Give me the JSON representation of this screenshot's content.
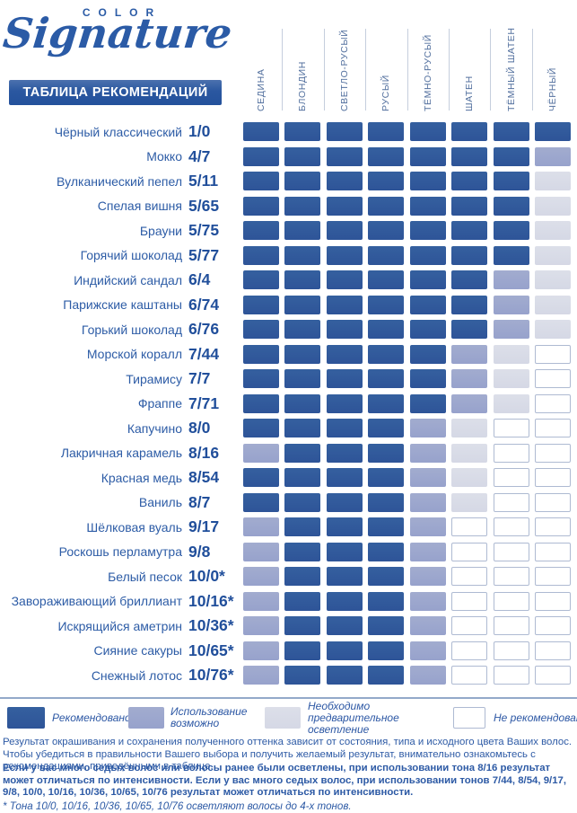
{
  "logo": {
    "color_word": "COLOR",
    "script_word": "Signature"
  },
  "header": {
    "title": "ТАБЛИЦА РЕКОМЕНДАЦИЙ"
  },
  "table": {
    "columns": [
      "СЕДИНА",
      "БЛОНДИН",
      "СВЕТЛО-РУСЫЙ",
      "РУСЫЙ",
      "ТЁМНО-РУСЫЙ",
      "ШАТЕН",
      "ТЁМНЫЙ ШАТЕН",
      "ЧЁРНЫЙ"
    ],
    "rows": [
      {
        "name": "Чёрный классический",
        "code": "1/0",
        "cells": [
          "R",
          "R",
          "R",
          "R",
          "R",
          "R",
          "R",
          "R"
        ]
      },
      {
        "name": "Мокко",
        "code": "4/7",
        "cells": [
          "R",
          "R",
          "R",
          "R",
          "R",
          "R",
          "R",
          "P"
        ]
      },
      {
        "name": "Вулканический пепел",
        "code": "5/11",
        "cells": [
          "R",
          "R",
          "R",
          "R",
          "R",
          "R",
          "R",
          "L"
        ]
      },
      {
        "name": "Спелая вишня",
        "code": "5/65",
        "cells": [
          "R",
          "R",
          "R",
          "R",
          "R",
          "R",
          "R",
          "L"
        ]
      },
      {
        "name": "Брауни",
        "code": "5/75",
        "cells": [
          "R",
          "R",
          "R",
          "R",
          "R",
          "R",
          "R",
          "L"
        ]
      },
      {
        "name": "Горячий шоколад",
        "code": "5/77",
        "cells": [
          "R",
          "R",
          "R",
          "R",
          "R",
          "R",
          "R",
          "L"
        ]
      },
      {
        "name": "Индийский сандал",
        "code": "6/4",
        "cells": [
          "R",
          "R",
          "R",
          "R",
          "R",
          "R",
          "P",
          "L"
        ]
      },
      {
        "name": "Парижские каштаны",
        "code": "6/74",
        "cells": [
          "R",
          "R",
          "R",
          "R",
          "R",
          "R",
          "P",
          "L"
        ]
      },
      {
        "name": "Горький шоколад",
        "code": "6/76",
        "cells": [
          "R",
          "R",
          "R",
          "R",
          "R",
          "R",
          "P",
          "L"
        ]
      },
      {
        "name": "Морской коралл",
        "code": "7/44",
        "cells": [
          "R",
          "R",
          "R",
          "R",
          "R",
          "P",
          "L",
          "N"
        ]
      },
      {
        "name": "Тирамису",
        "code": "7/7",
        "cells": [
          "R",
          "R",
          "R",
          "R",
          "R",
          "P",
          "L",
          "N"
        ]
      },
      {
        "name": "Фраппе",
        "code": "7/71",
        "cells": [
          "R",
          "R",
          "R",
          "R",
          "R",
          "P",
          "L",
          "N"
        ]
      },
      {
        "name": "Капучино",
        "code": "8/0",
        "cells": [
          "R",
          "R",
          "R",
          "R",
          "P",
          "L",
          "N",
          "N"
        ]
      },
      {
        "name": "Лакричная карамель",
        "code": "8/16",
        "cells": [
          "P",
          "R",
          "R",
          "R",
          "P",
          "L",
          "N",
          "N"
        ]
      },
      {
        "name": "Красная медь",
        "code": "8/54",
        "cells": [
          "R",
          "R",
          "R",
          "R",
          "P",
          "L",
          "N",
          "N"
        ]
      },
      {
        "name": "Ваниль",
        "code": "8/7",
        "cells": [
          "R",
          "R",
          "R",
          "R",
          "P",
          "L",
          "N",
          "N"
        ]
      },
      {
        "name": "Шёлковая вуаль",
        "code": "9/17",
        "cells": [
          "P",
          "R",
          "R",
          "R",
          "P",
          "N",
          "N",
          "N"
        ]
      },
      {
        "name": "Роскошь перламутра",
        "code": "9/8",
        "cells": [
          "P",
          "R",
          "R",
          "R",
          "P",
          "N",
          "N",
          "N"
        ]
      },
      {
        "name": "Белый песок",
        "code": "10/0*",
        "cells": [
          "P",
          "R",
          "R",
          "R",
          "P",
          "N",
          "N",
          "N"
        ]
      },
      {
        "name": "Завораживающий бриллиант",
        "code": "10/16*",
        "cells": [
          "P",
          "R",
          "R",
          "R",
          "P",
          "N",
          "N",
          "N"
        ]
      },
      {
        "name": "Искрящийся аметрин",
        "code": "10/36*",
        "cells": [
          "P",
          "R",
          "R",
          "R",
          "P",
          "N",
          "N",
          "N"
        ]
      },
      {
        "name": "Сияние сакуры",
        "code": "10/65*",
        "cells": [
          "P",
          "R",
          "R",
          "R",
          "P",
          "N",
          "N",
          "N"
        ]
      },
      {
        "name": "Снежный лотос",
        "code": "10/76*",
        "cells": [
          "P",
          "R",
          "R",
          "R",
          "P",
          "N",
          "N",
          "N"
        ]
      }
    ]
  },
  "legend": [
    {
      "type": "R",
      "label": "Рекомендовано"
    },
    {
      "type": "P",
      "label": "Использование возможно"
    },
    {
      "type": "L",
      "label": "Необходимо предварительное осветление"
    },
    {
      "type": "N",
      "label": "Не рекомендовано"
    }
  ],
  "colors": {
    "recommended": "#2F569B",
    "possible": "#9AA5CE",
    "pre_lighten": "#D8DBE7",
    "not_recommended": "#FFFFFF",
    "cell_border": "#AEBAD2",
    "accent": "#24519B",
    "text": "#2D5AA5"
  },
  "footer": {
    "para1": "Результат окрашивания и сохранения полученного оттенка зависит от состояния, типа и исходного цвета Ваших волос. Чтобы убедиться в правильности Вашего выбора и получить желаемый результат, внимательно ознакомьтесь с рекомендациями, приведёнными в таблице.",
    "para2": "Если у вас много седых волос или волосы ранее были осветлены, при использовании тона 8/16 результат может отличаться по интенсивности. Если у вас много седых волос, при использовании тонов 7/44, 8/54, 9/17, 9/8, 10/0, 10/16, 10/36, 10/65, 10/76 результат может отличаться по интенсивности.",
    "para3": "* Тона 10/0, 10/16, 10/36, 10/65, 10/76 осветляют волосы до 4-х тонов."
  }
}
